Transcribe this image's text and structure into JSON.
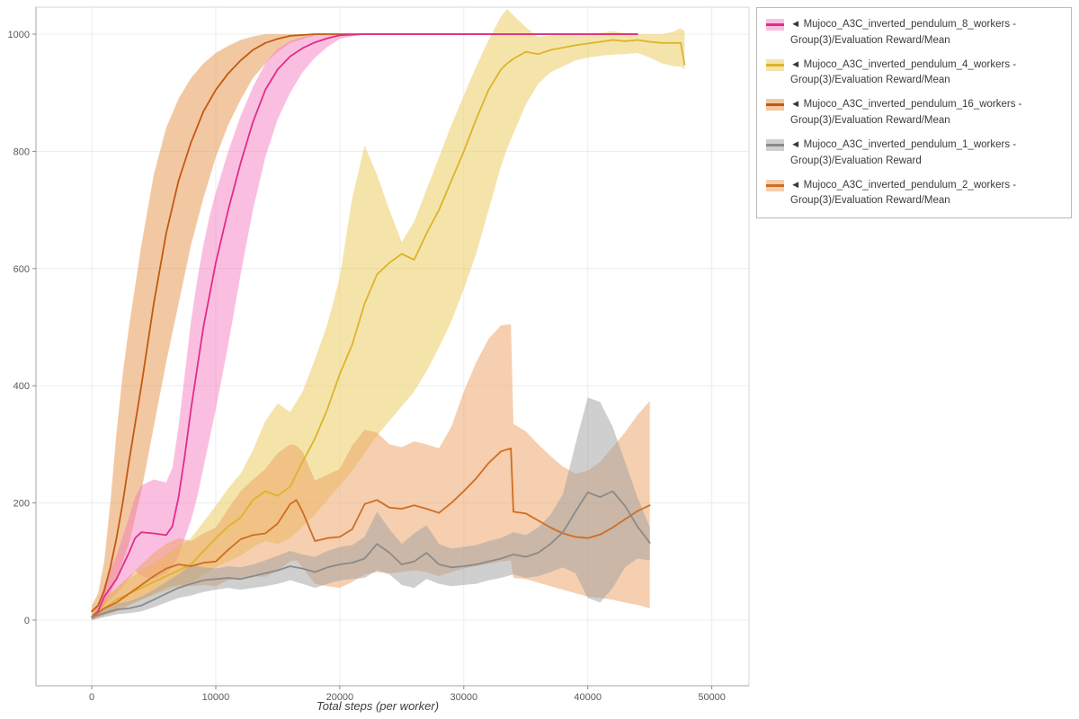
{
  "chart_data": {
    "type": "line",
    "title": "",
    "xlabel": "Total steps (per worker)",
    "ylabel": "",
    "xlim": [
      -4500,
      53000
    ],
    "ylim": [
      -112,
      1046
    ],
    "xticks": [
      0,
      10000,
      20000,
      30000,
      40000,
      50000
    ],
    "yticks": [
      0,
      200,
      400,
      600,
      800,
      1000
    ],
    "grid": true,
    "legend_position": "outside-top-right",
    "draw_order": [
      2,
      0,
      1,
      4,
      3
    ],
    "series": [
      {
        "key": "8-workers",
        "label": "◄ Mujoco_A3C_inverted_pendulum_8_workers - Group(3)/Evaluation Reward/Mean",
        "line_color": "#df2d8c",
        "band_color": "rgba(243,112,186,0.45)",
        "x": [
          0,
          500,
          1000,
          2000,
          3000,
          3500,
          4000,
          5000,
          6000,
          6500,
          7000,
          7500,
          8000,
          8500,
          9000,
          9500,
          10000,
          11000,
          12000,
          13000,
          14000,
          15000,
          16000,
          17000,
          18000,
          19000,
          20000,
          22000,
          26000,
          30000,
          34000,
          38000,
          42000,
          44000
        ],
        "mean": [
          5,
          15,
          40,
          70,
          115,
          140,
          150,
          148,
          145,
          160,
          210,
          280,
          360,
          430,
          500,
          555,
          610,
          700,
          780,
          850,
          905,
          940,
          962,
          976,
          986,
          993,
          998,
          1000,
          1000,
          1000,
          1000,
          1000,
          1000,
          1000
        ],
        "low": [
          0,
          8,
          25,
          45,
          70,
          85,
          75,
          70,
          80,
          90,
          110,
          140,
          170,
          210,
          260,
          310,
          360,
          470,
          590,
          700,
          790,
          855,
          900,
          935,
          960,
          978,
          992,
          1000,
          1000,
          1000,
          1000,
          1000,
          1000,
          1000
        ],
        "high": [
          10,
          25,
          60,
          110,
          175,
          210,
          230,
          240,
          235,
          260,
          330,
          420,
          510,
          580,
          640,
          690,
          730,
          800,
          860,
          910,
          950,
          975,
          988,
          995,
          999,
          1000,
          1000,
          1000,
          1000,
          1000,
          1000,
          1000,
          1000,
          1000
        ]
      },
      {
        "key": "4-workers",
        "label": "◄ Mujoco_A3C_inverted_pendulum_4_workers - Group(3)/Evaluation Reward/Mean",
        "line_color": "#dcb42a",
        "band_color": "rgba(236,202,85,0.5)",
        "x": [
          0,
          1000,
          2000,
          4000,
          6000,
          8000,
          10000,
          11000,
          12000,
          13000,
          14000,
          15000,
          16000,
          17000,
          18000,
          19000,
          20000,
          21000,
          22000,
          23000,
          24000,
          25000,
          26000,
          27000,
          28000,
          29000,
          30000,
          31000,
          32000,
          33000,
          33500,
          34000,
          35000,
          36000,
          37000,
          38000,
          39000,
          40000,
          41000,
          42000,
          43000,
          44000,
          45000,
          46000,
          47000,
          47500,
          47800
        ],
        "mean": [
          5,
          20,
          35,
          55,
          75,
          95,
          140,
          160,
          175,
          205,
          220,
          212,
          228,
          270,
          310,
          360,
          420,
          470,
          540,
          590,
          610,
          625,
          615,
          660,
          700,
          750,
          800,
          855,
          905,
          940,
          950,
          958,
          970,
          966,
          973,
          977,
          981,
          984,
          987,
          990,
          988,
          990,
          987,
          985,
          985,
          985,
          948
        ],
        "low": [
          0,
          10,
          20,
          35,
          50,
          65,
          90,
          100,
          110,
          125,
          135,
          130,
          140,
          160,
          180,
          205,
          230,
          255,
          285,
          315,
          340,
          365,
          390,
          425,
          465,
          510,
          565,
          625,
          700,
          775,
          805,
          830,
          880,
          915,
          935,
          945,
          955,
          960,
          963,
          965,
          966,
          968,
          960,
          950,
          945,
          945,
          940
        ],
        "high": [
          10,
          35,
          55,
          85,
          110,
          140,
          195,
          225,
          250,
          290,
          340,
          370,
          355,
          390,
          445,
          505,
          585,
          720,
          810,
          760,
          700,
          645,
          680,
          735,
          790,
          845,
          895,
          945,
          990,
          1030,
          1043,
          1032,
          1012,
          995,
          998,
          1000,
          1000,
          1000,
          1002,
          1005,
          1002,
          1000,
          1000,
          1000,
          1005,
          1010,
          1005
        ]
      },
      {
        "key": "16-workers",
        "label": "◄ Mujoco_A3C_inverted_pendulum_16_workers - Group(3)/Evaluation Reward/Mean",
        "line_color": "#c4590f",
        "band_color": "rgba(230,145,70,0.5)",
        "x": [
          0,
          500,
          1000,
          1500,
          2000,
          2500,
          3000,
          4000,
          5000,
          6000,
          7000,
          8000,
          9000,
          10000,
          11000,
          12000,
          13000,
          14000,
          15000,
          16000,
          18000,
          20000,
          24000,
          28000,
          32000,
          36000,
          40000,
          44000
        ],
        "mean": [
          15,
          25,
          50,
          90,
          140,
          200,
          270,
          400,
          540,
          660,
          750,
          815,
          868,
          905,
          933,
          955,
          973,
          985,
          992,
          997,
          1000,
          1000,
          1000,
          1000,
          1000,
          1000,
          1000,
          1000
        ],
        "low": [
          5,
          12,
          25,
          45,
          70,
          100,
          130,
          220,
          330,
          440,
          540,
          640,
          720,
          790,
          845,
          888,
          925,
          950,
          970,
          985,
          998,
          1000,
          1000,
          1000,
          1000,
          1000,
          1000,
          1000
        ],
        "high": [
          25,
          45,
          100,
          200,
          320,
          420,
          500,
          640,
          760,
          840,
          890,
          925,
          950,
          968,
          980,
          990,
          996,
          1000,
          1000,
          1000,
          1000,
          1000,
          1000,
          1000,
          1000,
          1000,
          1000,
          1000
        ]
      },
      {
        "key": "1-workers",
        "label": "◄ Mujoco_A3C_inverted_pendulum_1_workers - Group(3)/Evaluation Reward",
        "line_color": "#8a8a8a",
        "band_color": "rgba(160,160,160,0.5)",
        "x": [
          0,
          1000,
          2000,
          3000,
          4000,
          5000,
          6000,
          7000,
          8000,
          9000,
          10000,
          11000,
          12000,
          13000,
          14000,
          15000,
          16000,
          17000,
          18000,
          19000,
          20000,
          21000,
          22000,
          23000,
          24000,
          25000,
          26000,
          27000,
          28000,
          29000,
          30000,
          31000,
          32000,
          33000,
          34000,
          35000,
          36000,
          37000,
          38000,
          39000,
          40000,
          41000,
          42000,
          43000,
          44000,
          45000
        ],
        "mean": [
          5,
          12,
          18,
          20,
          25,
          35,
          45,
          55,
          62,
          68,
          70,
          72,
          70,
          75,
          80,
          85,
          92,
          88,
          82,
          90,
          95,
          98,
          105,
          130,
          115,
          95,
          100,
          115,
          95,
          90,
          92,
          95,
          100,
          105,
          112,
          108,
          115,
          130,
          150,
          185,
          218,
          210,
          220,
          195,
          160,
          132
        ],
        "low": [
          0,
          5,
          10,
          12,
          15,
          22,
          30,
          38,
          42,
          48,
          52,
          55,
          52,
          55,
          58,
          62,
          68,
          62,
          55,
          62,
          68,
          70,
          72,
          85,
          78,
          60,
          55,
          70,
          62,
          58,
          60,
          62,
          68,
          72,
          78,
          72,
          75,
          82,
          90,
          80,
          38,
          30,
          55,
          90,
          105,
          102
        ],
        "high": [
          10,
          20,
          28,
          32,
          40,
          52,
          65,
          78,
          95,
          90,
          88,
          92,
          90,
          95,
          102,
          110,
          118,
          112,
          108,
          118,
          125,
          128,
          142,
          185,
          155,
          130,
          148,
          162,
          130,
          122,
          125,
          128,
          135,
          140,
          150,
          145,
          158,
          180,
          215,
          300,
          380,
          372,
          330,
          270,
          210,
          158
        ]
      },
      {
        "key": "2-workers",
        "label": "◄ Mujoco_A3C_inverted_pendulum_2_workers - Group(3)/Evaluation Reward/Mean",
        "line_color": "#d06d22",
        "band_color": "rgba(235,160,95,0.5)",
        "x": [
          0,
          1000,
          2000,
          3000,
          4000,
          5000,
          6000,
          7000,
          8000,
          9000,
          10000,
          11000,
          12000,
          13000,
          14000,
          15000,
          16000,
          16500,
          17000,
          18000,
          19000,
          20000,
          21000,
          22000,
          23000,
          24000,
          25000,
          26000,
          27000,
          28000,
          29000,
          30000,
          31000,
          32000,
          33000,
          33800,
          34000,
          35000,
          36000,
          37000,
          38000,
          39000,
          40000,
          41000,
          42000,
          43000,
          44000,
          45000
        ],
        "mean": [
          5,
          20,
          30,
          45,
          60,
          75,
          88,
          95,
          92,
          98,
          100,
          120,
          138,
          145,
          148,
          165,
          198,
          205,
          185,
          135,
          140,
          142,
          155,
          198,
          205,
          192,
          190,
          196,
          190,
          183,
          200,
          220,
          242,
          268,
          288,
          293,
          185,
          182,
          170,
          158,
          148,
          142,
          140,
          146,
          158,
          172,
          186,
          196
        ],
        "low": [
          0,
          8,
          15,
          25,
          35,
          45,
          55,
          60,
          58,
          60,
          58,
          68,
          72,
          75,
          74,
          85,
          100,
          102,
          90,
          62,
          58,
          55,
          65,
          78,
          82,
          80,
          82,
          85,
          82,
          75,
          82,
          88,
          92,
          96,
          100,
          102,
          72,
          70,
          64,
          58,
          52,
          46,
          40,
          38,
          35,
          30,
          26,
          20
        ],
        "high": [
          10,
          35,
          55,
          75,
          95,
          115,
          130,
          140,
          135,
          148,
          158,
          190,
          220,
          240,
          258,
          285,
          300,
          298,
          288,
          238,
          248,
          258,
          298,
          325,
          320,
          300,
          295,
          305,
          300,
          293,
          330,
          390,
          440,
          480,
          503,
          505,
          335,
          322,
          300,
          280,
          262,
          250,
          255,
          270,
          295,
          320,
          350,
          374
        ]
      }
    ]
  }
}
